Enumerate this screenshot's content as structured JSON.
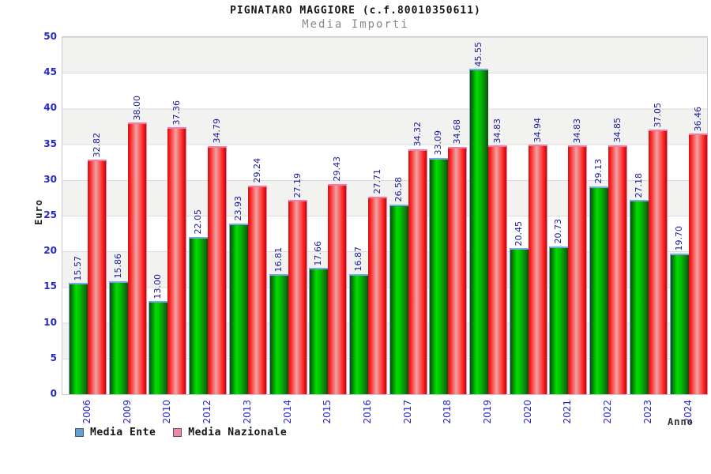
{
  "title": "PIGNATARO MAGGIORE (c.f.80010350611)",
  "subtitle": "Media Importi",
  "chart_data": {
    "type": "bar",
    "title": "PIGNATARO MAGGIORE (c.f.80010350611)",
    "subtitle": "Media Importi",
    "xlabel": "Anno",
    "ylabel": "Euro",
    "ylim": [
      0,
      50
    ],
    "yticks": [
      0,
      5,
      10,
      15,
      20,
      25,
      30,
      35,
      40,
      45,
      50
    ],
    "grid": "alternating gray/white horizontal bands every 5 units",
    "legend_position": "bottom-left",
    "value_labels": "rotated 90deg above each bar, two decimals",
    "categories": [
      "2006",
      "2009",
      "2010",
      "2012",
      "2013",
      "2014",
      "2015",
      "2016",
      "2017",
      "2018",
      "2019",
      "2020",
      "2021",
      "2022",
      "2023",
      "2024"
    ],
    "series": [
      {
        "name": "Media Ente",
        "legend_color": "#62a0d8",
        "bar_style": "green cylinder gradient with light-blue cap",
        "values": [
          15.57,
          15.86,
          13.0,
          22.05,
          23.93,
          16.81,
          17.66,
          16.87,
          26.58,
          33.09,
          45.55,
          20.45,
          20.73,
          29.13,
          27.18,
          19.7
        ]
      },
      {
        "name": "Media Nazionale",
        "legend_color": "#ef87ad",
        "bar_style": "red cylinder gradient with pink cap",
        "values": [
          32.82,
          38.0,
          37.36,
          34.79,
          29.24,
          27.19,
          29.43,
          27.71,
          34.32,
          34.68,
          34.83,
          34.94,
          34.83,
          34.85,
          37.05,
          36.46
        ]
      }
    ],
    "colors": {
      "value_label": "#1a1a99",
      "axis_tick_label": "#2626cc",
      "band_gray": "#f2f2f1",
      "band_white": "#ffffff",
      "plot_border": "#c9c9d6",
      "green_dark": "#0d4d0d",
      "green_light": "#00dd00",
      "red_dark": "#a81010",
      "red_light": "#efa3a3",
      "ente_cap": "#7aa7e8",
      "nazionale_cap": "#f07ca8"
    }
  }
}
